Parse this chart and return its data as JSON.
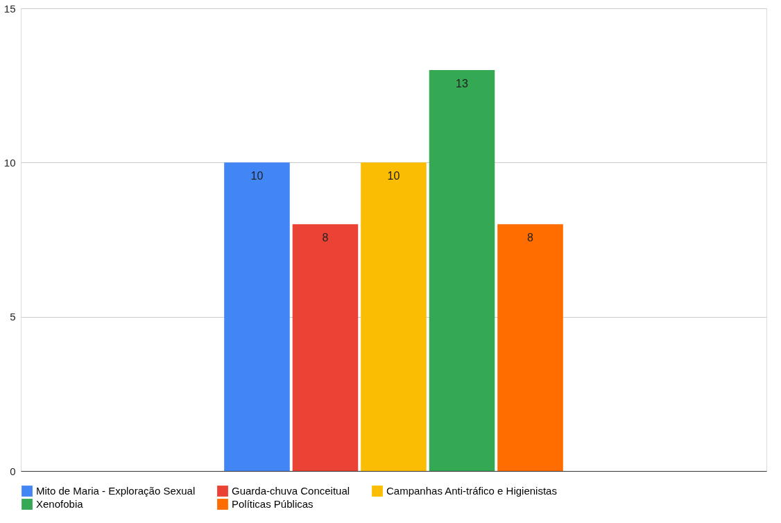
{
  "chart_data": {
    "type": "bar",
    "categories": [
      null
    ],
    "series": [
      {
        "name": "Mito de Maria - Exploração Sexual",
        "color": "#4285f4",
        "values": [
          10
        ]
      },
      {
        "name": "Guarda-chuva Conceitual",
        "color": "#ea4335",
        "values": [
          8
        ]
      },
      {
        "name": "Campanhas Anti-tráfico e Higienistas",
        "color": "#fbbc04",
        "values": [
          10
        ]
      },
      {
        "name": "Xenofobia",
        "color": "#34a853",
        "values": [
          13
        ]
      },
      {
        "name": "Políticas Públicas",
        "color": "#ff6d01",
        "values": [
          8
        ]
      }
    ],
    "ylim": [
      0,
      15
    ],
    "yticks": [
      0,
      5,
      10,
      15
    ],
    "grid": "y",
    "data_labels": true,
    "legend": "bottom"
  }
}
